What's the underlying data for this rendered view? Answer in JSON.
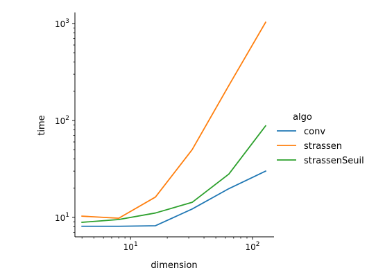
{
  "chart_data": {
    "type": "line",
    "x": [
      4,
      8,
      16,
      32,
      64,
      128
    ],
    "series": [
      {
        "name": "conv",
        "values": [
          8.1,
          8.1,
          8.2,
          12.2,
          19.8,
          30.0
        ],
        "color": "#1f77b4"
      },
      {
        "name": "strassen",
        "values": [
          10.3,
          9.8,
          16.2,
          50.0,
          230,
          1030
        ],
        "color": "#ff7f0e"
      },
      {
        "name": "strassenSeuil",
        "values": [
          8.9,
          9.5,
          11.1,
          14.3,
          28.0,
          88.0
        ],
        "color": "#2ca02c"
      }
    ],
    "xlabel": "dimension",
    "ylabel": "time",
    "xscale": "log",
    "yscale": "log",
    "xlim": [
      3.5,
      150
    ],
    "ylim": [
      6.3,
      1300
    ],
    "xticks": [
      {
        "value": 10,
        "base": "10",
        "exp": "1"
      },
      {
        "value": 100,
        "base": "10",
        "exp": "2"
      }
    ],
    "yticks": [
      {
        "value": 10,
        "base": "10",
        "exp": "1"
      },
      {
        "value": 100,
        "base": "10",
        "exp": "2"
      },
      {
        "value": 1000,
        "base": "10",
        "exp": "3"
      }
    ],
    "legend": {
      "title": "algo",
      "placement": "right"
    },
    "grid": false
  }
}
